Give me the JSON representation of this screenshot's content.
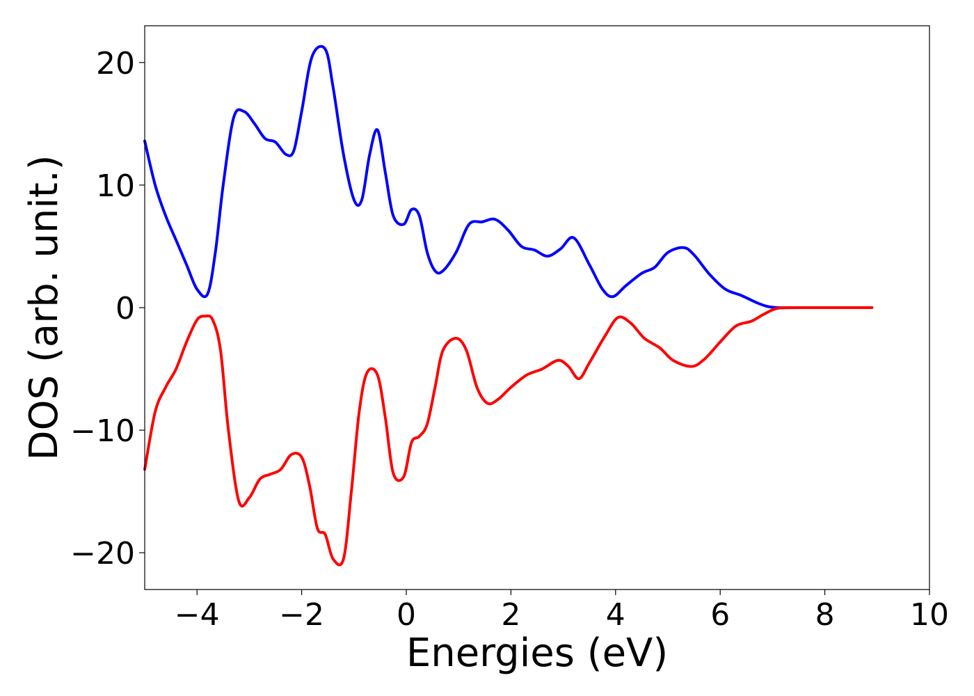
{
  "chart_data": {
    "type": "line",
    "title": "",
    "xlabel": "Energies (eV)",
    "ylabel": "DOS (arb. unit.)",
    "xlim": [
      -5,
      10
    ],
    "ylim": [
      -23,
      23
    ],
    "xticks": [
      -4,
      -2,
      0,
      2,
      4,
      6,
      8,
      10
    ],
    "yticks": [
      -20,
      -10,
      0,
      10,
      20
    ],
    "xtick_labels": [
      "−4",
      "−2",
      "0",
      "2",
      "4",
      "6",
      "8",
      "10"
    ],
    "ytick_labels": [
      "−20",
      "−10",
      "0",
      "10",
      "20"
    ],
    "grid": false,
    "legend": "none",
    "series": [
      {
        "color": "#0000ff",
        "x": [
          -5.0,
          -4.8,
          -4.6,
          -4.4,
          -4.2,
          -4.0,
          -3.8,
          -3.65,
          -3.5,
          -3.3,
          -3.1,
          -2.9,
          -2.7,
          -2.5,
          -2.3,
          -2.15,
          -2.0,
          -1.8,
          -1.55,
          -1.4,
          -1.2,
          -1.0,
          -0.85,
          -0.7,
          -0.55,
          -0.4,
          -0.25,
          -0.05,
          0.1,
          0.25,
          0.4,
          0.55,
          0.7,
          0.95,
          1.2,
          1.45,
          1.7,
          1.95,
          2.2,
          2.45,
          2.7,
          2.95,
          3.2,
          3.5,
          3.75,
          3.95,
          4.2,
          4.5,
          4.75,
          5.0,
          5.3,
          5.5,
          5.8,
          6.1,
          6.4,
          6.7,
          6.9,
          7.1,
          7.5,
          8.0,
          8.5,
          8.9
        ],
        "y": [
          13.6,
          10.0,
          7.5,
          5.5,
          3.5,
          1.5,
          1.1,
          4.5,
          10.0,
          15.5,
          16.0,
          15.0,
          13.8,
          13.5,
          12.5,
          12.8,
          16.0,
          20.5,
          21.1,
          18.0,
          12.5,
          8.8,
          8.8,
          12.5,
          14.5,
          11.0,
          7.5,
          6.8,
          8.0,
          7.5,
          4.5,
          3.0,
          3.0,
          4.5,
          6.8,
          7.0,
          7.2,
          6.3,
          5.0,
          4.7,
          4.2,
          4.8,
          5.7,
          3.5,
          1.5,
          0.9,
          1.8,
          2.8,
          3.3,
          4.5,
          4.9,
          4.3,
          2.7,
          1.5,
          1.0,
          0.4,
          0.1,
          0.0,
          0.0,
          0.0,
          0.0,
          0.0
        ]
      },
      {
        "color": "#ff0000",
        "x": [
          -5.0,
          -4.8,
          -4.6,
          -4.4,
          -4.2,
          -4.0,
          -3.85,
          -3.7,
          -3.55,
          -3.4,
          -3.2,
          -3.0,
          -2.8,
          -2.6,
          -2.4,
          -2.2,
          -2.0,
          -1.85,
          -1.7,
          -1.55,
          -1.4,
          -1.2,
          -1.05,
          -0.9,
          -0.75,
          -0.55,
          -0.4,
          -0.25,
          -0.05,
          0.1,
          0.25,
          0.4,
          0.55,
          0.7,
          0.95,
          1.15,
          1.35,
          1.55,
          1.75,
          2.0,
          2.3,
          2.6,
          2.9,
          3.1,
          3.3,
          3.5,
          3.8,
          4.05,
          4.3,
          4.55,
          4.85,
          5.1,
          5.45,
          5.7,
          6.0,
          6.3,
          6.6,
          6.85,
          7.1,
          7.5,
          8.0,
          8.5,
          8.9
        ],
        "y": [
          -13.2,
          -8.5,
          -6.5,
          -5.0,
          -2.8,
          -1.0,
          -0.7,
          -1.0,
          -3.5,
          -10.0,
          -15.8,
          -15.5,
          -14.0,
          -13.6,
          -13.2,
          -12.0,
          -12.2,
          -14.5,
          -18.0,
          -18.5,
          -20.5,
          -20.5,
          -15.0,
          -8.5,
          -5.3,
          -5.5,
          -9.0,
          -13.5,
          -13.8,
          -11.0,
          -10.5,
          -9.5,
          -6.5,
          -3.5,
          -2.5,
          -3.5,
          -6.5,
          -7.8,
          -7.5,
          -6.5,
          -5.5,
          -5.0,
          -4.3,
          -4.8,
          -5.8,
          -4.5,
          -2.3,
          -0.8,
          -1.3,
          -2.5,
          -3.3,
          -4.3,
          -4.8,
          -4.2,
          -2.8,
          -1.5,
          -1.1,
          -0.5,
          -0.05,
          0.0,
          0.0,
          0.0,
          0.0
        ]
      }
    ]
  }
}
